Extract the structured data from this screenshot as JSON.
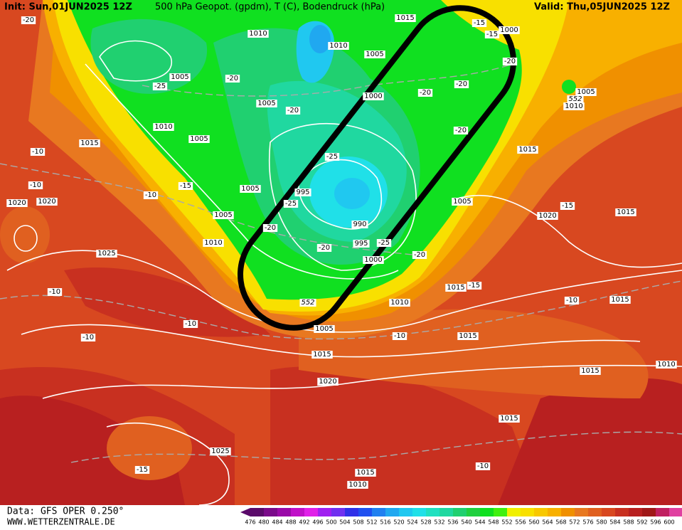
{
  "header": {
    "init": "Init: Sun,01JUN2025 12Z",
    "title": "500 hPa Geopot. (gpdm), T (C), Bodendruck (hPa)",
    "valid": "Valid: Thu,05JUN2025 12Z"
  },
  "footer": {
    "data": "Data: GFS OPER 0.250°",
    "site": "WWW.WETTERZENTRALE.DE"
  },
  "colorbar": {
    "values": [
      476,
      480,
      484,
      488,
      492,
      496,
      500,
      504,
      508,
      512,
      516,
      520,
      524,
      528,
      532,
      536,
      540,
      544,
      548,
      552,
      556,
      560,
      564,
      568,
      572,
      576,
      580,
      584,
      588,
      592,
      596,
      600
    ],
    "colors": [
      "#5a0a6a",
      "#7a0a8a",
      "#9a0aa8",
      "#c010c8",
      "#e020e8",
      "#a020f0",
      "#7030f0",
      "#3030e8",
      "#2050f0",
      "#2080f0",
      "#20a8f0",
      "#20c8f0",
      "#20e0e8",
      "#20e0c0",
      "#20d8a0",
      "#20d070",
      "#20d040",
      "#10e020",
      "#40f010",
      "#f0f000",
      "#f8e000",
      "#f8c800",
      "#f8b000",
      "#f09000",
      "#e87820",
      "#e06020",
      "#d84820",
      "#c83020",
      "#b82020",
      "#a01818",
      "#c02060",
      "#e040a0"
    ]
  },
  "isobar_labels": [
    1015,
    1010,
    1010,
    1005,
    1005,
    1005,
    1000,
    1010,
    1005,
    1015,
    1005,
    995,
    1005,
    1010,
    990,
    995,
    1000,
    1020,
    1020,
    1025,
    1005,
    1020,
    1015,
    1015,
    1005,
    1010,
    1000,
    1010,
    1015,
    1015,
    1005,
    1015,
    1015,
    1015,
    1020,
    1010,
    1015,
    1025,
    1015,
    1010
  ],
  "temperature_labels": [
    -20,
    -15,
    -15,
    -20,
    -20,
    -25,
    -20,
    -20,
    -20,
    -20,
    -25,
    -15,
    -10,
    -10,
    -10,
    -25,
    -20,
    -20,
    -25,
    -20,
    -15,
    -15,
    -10,
    -10,
    -10,
    -10,
    -10,
    -15,
    -10
  ],
  "geopotential_labels": [
    552,
    552
  ]
}
